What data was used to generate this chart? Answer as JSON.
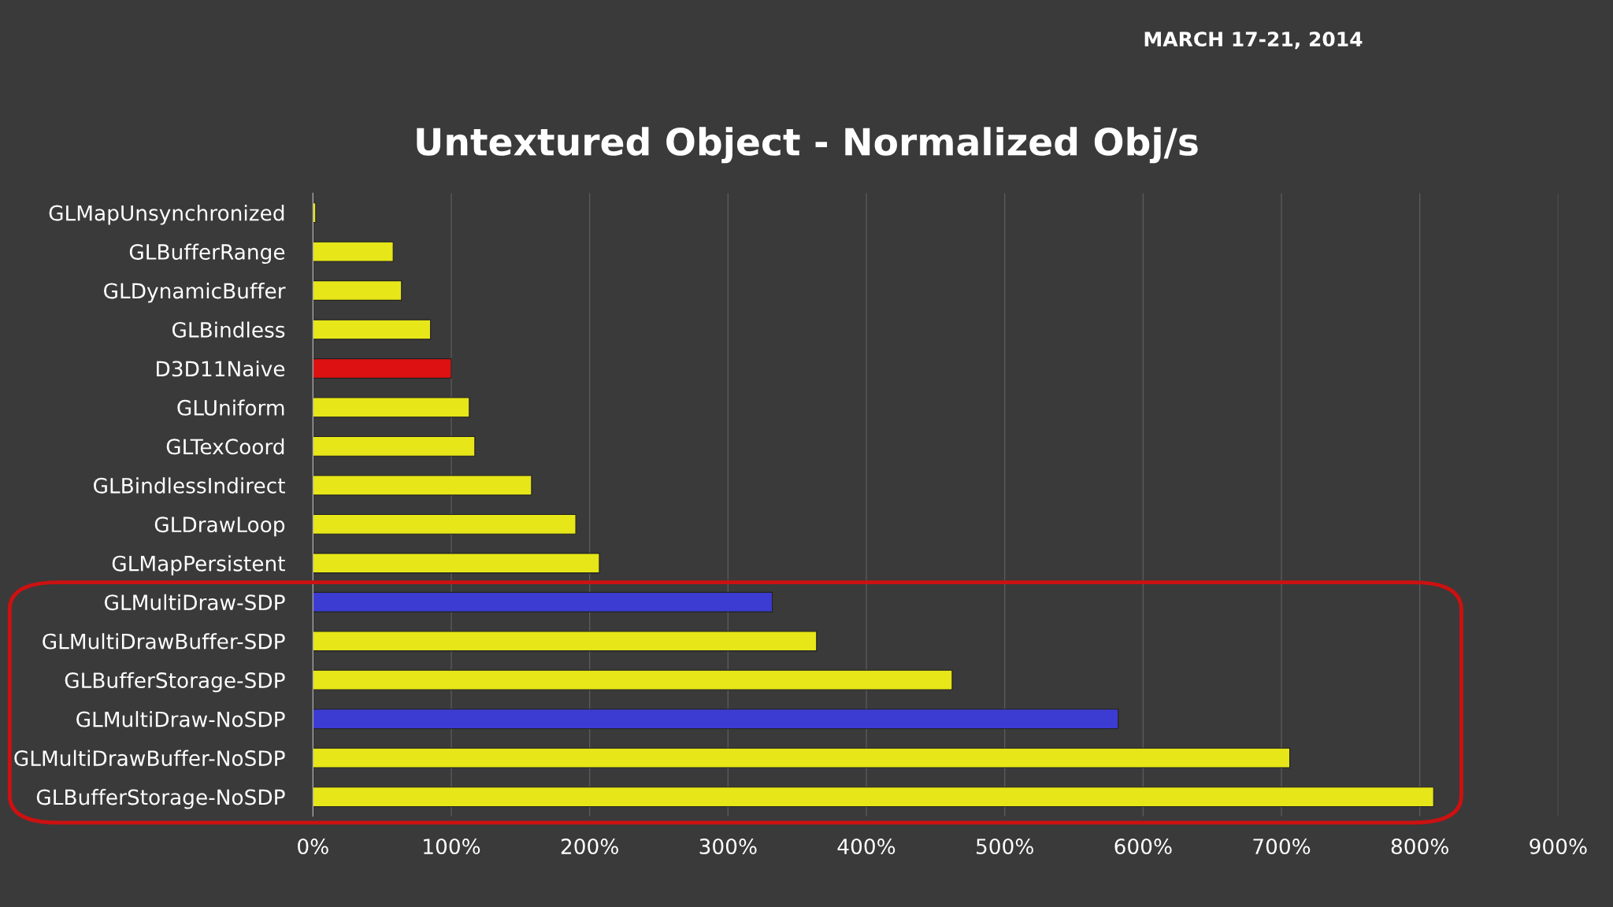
{
  "chart_data": {
    "type": "bar",
    "orientation": "horizontal",
    "title": "Untextured Object - Normalized Obj/s",
    "categories": [
      "GLMapUnsynchronized",
      "GLBufferRange",
      "GLDynamicBuffer",
      "GLBindless",
      "D3D11Naive",
      "GLUniform",
      "GLTexCoord",
      "GLBindlessIndirect",
      "GLDrawLoop",
      "GLMapPersistent",
      "GLMultiDraw-SDP",
      "GLMultiDrawBuffer-SDP",
      "GLBufferStorage-SDP",
      "GLMultiDraw-NoSDP",
      "GLMultiDrawBuffer-NoSDP",
      "GLBufferStorage-NoSDP"
    ],
    "values": [
      2,
      58,
      64,
      85,
      100,
      113,
      117,
      158,
      190,
      207,
      332,
      364,
      462,
      582,
      706,
      810
    ],
    "colors": [
      "#e6e619",
      "#e6e619",
      "#e6e619",
      "#e6e619",
      "#dd1111",
      "#e6e619",
      "#e6e619",
      "#e6e619",
      "#e6e619",
      "#e6e619",
      "#3c3cd2",
      "#e6e619",
      "#e6e619",
      "#3c3cd2",
      "#e6e619",
      "#e6e619"
    ],
    "xlim": [
      0,
      900
    ],
    "xticks": [
      {
        "value": 0,
        "label": "0%"
      },
      {
        "value": 100,
        "label": "100%"
      },
      {
        "value": 200,
        "label": "200%"
      },
      {
        "value": 300,
        "label": "300%"
      },
      {
        "value": 400,
        "label": "400%"
      },
      {
        "value": 500,
        "label": "500%"
      },
      {
        "value": 600,
        "label": "600%"
      },
      {
        "value": 700,
        "label": "700%"
      },
      {
        "value": 800,
        "label": "800%"
      },
      {
        "value": 900,
        "label": "900%"
      }
    ],
    "grid": "x",
    "annotations": [
      "MARCH 17-21, 2014"
    ]
  }
}
